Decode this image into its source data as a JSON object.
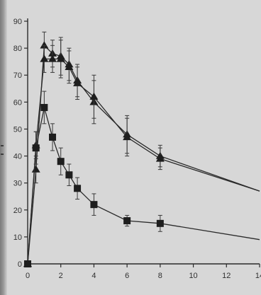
{
  "chart_data": {
    "type": "line",
    "title": "",
    "xlabel": "",
    "ylabel": "",
    "xlim": [
      0,
      14
    ],
    "ylim": [
      0,
      90
    ],
    "x_ticks": [
      0,
      2,
      4,
      6,
      8,
      10,
      12,
      14
    ],
    "y_ticks": [
      0,
      10,
      20,
      30,
      40,
      50,
      60,
      70,
      80,
      90
    ],
    "grid": false,
    "legend": "none",
    "series": [
      {
        "marker": "triangle",
        "x": [
          0,
          0.5,
          1,
          1.5,
          2,
          2.5,
          3,
          4,
          6,
          8,
          14
        ],
        "y": [
          0,
          35,
          81,
          78,
          77,
          74,
          68,
          60,
          48,
          40,
          27
        ],
        "err": [
          0,
          5,
          5,
          5,
          7,
          6,
          6,
          8,
          7,
          4,
          0
        ]
      },
      {
        "marker": "triangle",
        "x": [
          0,
          0.5,
          1,
          1.5,
          2,
          2.5,
          3,
          4,
          6,
          8,
          14
        ],
        "y": [
          0,
          44,
          76,
          76,
          76,
          73,
          67,
          62,
          47,
          39,
          27
        ],
        "err": [
          0,
          5,
          5,
          5,
          7,
          6,
          6,
          8,
          7,
          4,
          0
        ]
      },
      {
        "marker": "square",
        "x": [
          0,
          0.5,
          1,
          1.5,
          2,
          2.5,
          3,
          4,
          6,
          8,
          14
        ],
        "y": [
          0,
          43,
          58,
          47,
          38,
          33,
          28,
          22,
          16,
          15,
          9
        ],
        "err": [
          0,
          6,
          6,
          5,
          5,
          4,
          4,
          4,
          2,
          3,
          0
        ]
      }
    ],
    "colors": {
      "background": "#d7d7d7",
      "axis": "#2a2a2a",
      "line": "#2a2a2a",
      "marker": "#1e1e1e"
    }
  }
}
